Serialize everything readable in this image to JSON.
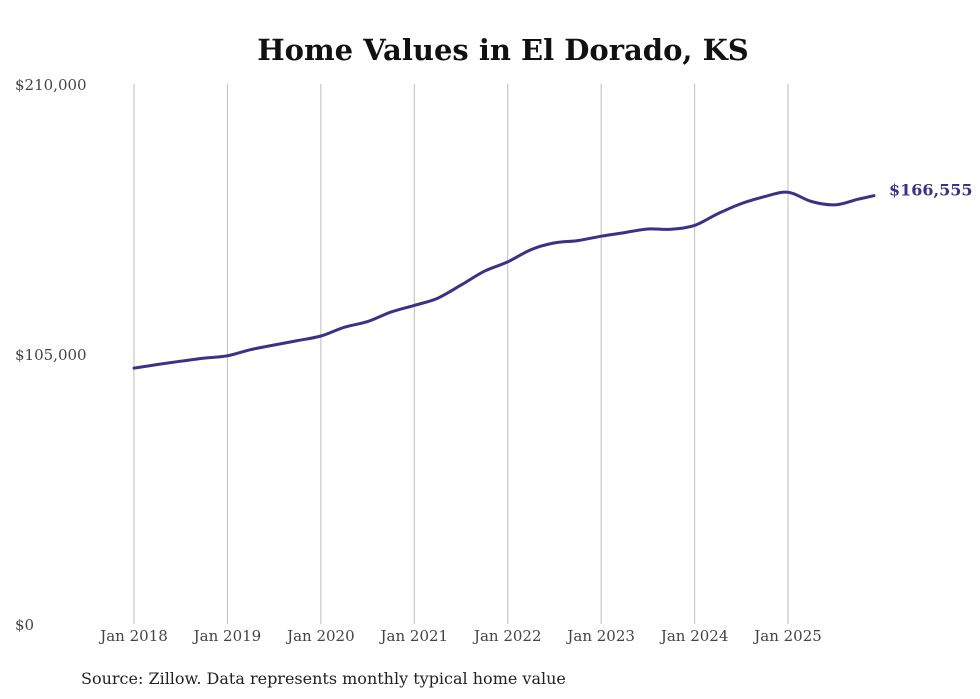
{
  "chart_data": {
    "type": "line",
    "title": "Home Values in El Dorado, KS",
    "xlabel": "",
    "ylabel": "",
    "ylim": [
      0,
      210000
    ],
    "y_ticks": [
      {
        "value": 0,
        "label": "$0"
      },
      {
        "value": 105000,
        "label": "$105,000"
      },
      {
        "value": 210000,
        "label": "$210,000"
      }
    ],
    "x_ticks": [
      {
        "value": 2018,
        "label": "Jan 2018"
      },
      {
        "value": 2019,
        "label": "Jan 2019"
      },
      {
        "value": 2020,
        "label": "Jan 2020"
      },
      {
        "value": 2021,
        "label": "Jan 2021"
      },
      {
        "value": 2022,
        "label": "Jan 2022"
      },
      {
        "value": 2023,
        "label": "Jan 2023"
      },
      {
        "value": 2024,
        "label": "Jan 2024"
      },
      {
        "value": 2025,
        "label": "Jan 2025"
      }
    ],
    "xlim": [
      2018,
      2025.92
    ],
    "grid": "vertical",
    "series": [
      {
        "name": "Typical home value",
        "color": "#3a3286",
        "x": [
          2018.0,
          2018.25,
          2018.5,
          2018.75,
          2019.0,
          2019.25,
          2019.5,
          2019.75,
          2020.0,
          2020.25,
          2020.5,
          2020.75,
          2021.0,
          2021.25,
          2021.5,
          2021.75,
          2022.0,
          2022.25,
          2022.5,
          2022.75,
          2023.0,
          2023.25,
          2023.5,
          2023.75,
          2024.0,
          2024.25,
          2024.5,
          2024.75,
          2025.0,
          2025.25,
          2025.5,
          2025.75,
          2025.92
        ],
        "values": [
          99500,
          100900,
          102200,
          103400,
          104300,
          106700,
          108500,
          110200,
          112000,
          115400,
          117600,
          121300,
          123900,
          126700,
          131800,
          137200,
          140800,
          145600,
          148200,
          149100,
          150800,
          152200,
          153600,
          153500,
          155000,
          159600,
          163500,
          166200,
          167900,
          164300,
          163000,
          165200,
          166555
        ]
      }
    ],
    "end_label": "$166,555",
    "source": "Source: Zillow. Data represents monthly typical home value"
  }
}
